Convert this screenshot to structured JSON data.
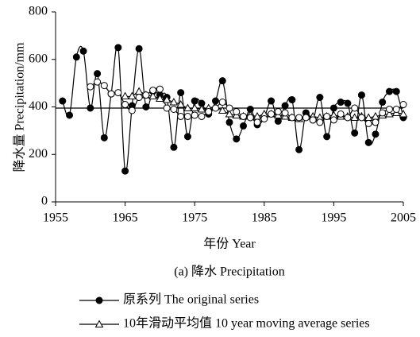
{
  "chart_data": {
    "type": "line",
    "caption": "(a) 降水 Precipitation",
    "x_label": "年份 Year",
    "y_label": "降水量 Precipitation/mm",
    "x": [
      1956,
      1957,
      1958,
      1959,
      1960,
      1961,
      1962,
      1963,
      1964,
      1965,
      1966,
      1967,
      1968,
      1969,
      1970,
      1971,
      1972,
      1973,
      1974,
      1975,
      1976,
      1977,
      1978,
      1979,
      1980,
      1981,
      1982,
      1983,
      1984,
      1985,
      1986,
      1987,
      1988,
      1989,
      1990,
      1991,
      1992,
      1993,
      1994,
      1995,
      1996,
      1997,
      1998,
      1999,
      2000,
      2001,
      2002,
      2003,
      2004,
      2005
    ],
    "series": [
      {
        "name": "原系列 The original series",
        "color": "#000000",
        "marker": "filled-circle",
        "values": [
          425,
          365,
          610,
          635,
          395,
          540,
          270,
          455,
          650,
          130,
          405,
          645,
          400,
          465,
          450,
          440,
          230,
          460,
          275,
          425,
          415,
          370,
          425,
          510,
          335,
          265,
          320,
          390,
          325,
          355,
          425,
          340,
          405,
          430,
          220,
          375,
          345,
          440,
          275,
          395,
          420,
          415,
          290,
          450,
          250,
          285,
          420,
          465,
          465,
          355
        ]
      },
      {
        "name": "10年滑动平均值 10 year moving average series",
        "color": "#000000",
        "marker": "triangle",
        "values": [
          null,
          null,
          null,
          null,
          null,
          null,
          null,
          null,
          null,
          445,
          445,
          465,
          450,
          445,
          435,
          430,
          420,
          410,
          395,
          395,
          390,
          395,
          400,
          385,
          370,
          365,
          360,
          365,
          360,
          370,
          370,
          365,
          360,
          355,
          350,
          360,
          360,
          355,
          360,
          365,
          360,
          360,
          355,
          360,
          355,
          360,
          365,
          370,
          375,
          370
        ]
      },
      {
        "color": "#000000",
        "marker": "open-circle",
        "values": [
          null,
          null,
          null,
          null,
          485,
          505,
          490,
          455,
          460,
          410,
          385,
          440,
          450,
          470,
          475,
          395,
          390,
          360,
          360,
          365,
          360,
          380,
          395,
          420,
          395,
          380,
          360,
          355,
          335,
          350,
          370,
          380,
          375,
          355,
          355,
          355,
          345,
          335,
          360,
          345,
          370,
          355,
          395,
          355,
          330,
          335,
          375,
          390,
          390,
          410
        ]
      }
    ],
    "reference_line": 395,
    "xlim": [
      1955,
      2005
    ],
    "xticks": [
      1955,
      1965,
      1975,
      1985,
      1995,
      2005
    ],
    "ylim": [
      0,
      800
    ],
    "yticks": [
      0,
      200,
      400,
      600,
      800
    ]
  }
}
